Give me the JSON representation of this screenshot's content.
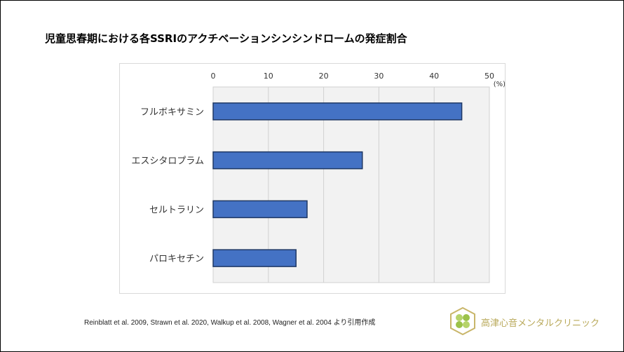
{
  "title": "児童思春期における各SSRIのアクチベーションシンシンドロームの発症割合",
  "chart_data": {
    "type": "bar",
    "orientation": "horizontal",
    "title": "児童思春期における各SSRIのアクチベーションシンシンドロームの発症割合",
    "categories": [
      "フルボキサミン",
      "エスシタロプラム",
      "セルトラリン",
      "パロキセチン"
    ],
    "values": [
      45,
      27,
      17,
      15
    ],
    "xlabel": "(%)",
    "xlim": [
      0,
      50
    ],
    "xticks": [
      "0",
      "10",
      "20",
      "30",
      "40",
      "50"
    ],
    "x_axis_position": "top",
    "grid": true,
    "bar_color": "#4472c4",
    "bar_edge_color": "#1f3864",
    "plot_background": "#f2f2f2"
  },
  "source": "Reinblatt et al. 2009,  Strawn et al. 2020, Walkup et al. 2008, Wagner et al. 2004  より引用作成",
  "clinic_name": "高津心音メンタルクリニック"
}
